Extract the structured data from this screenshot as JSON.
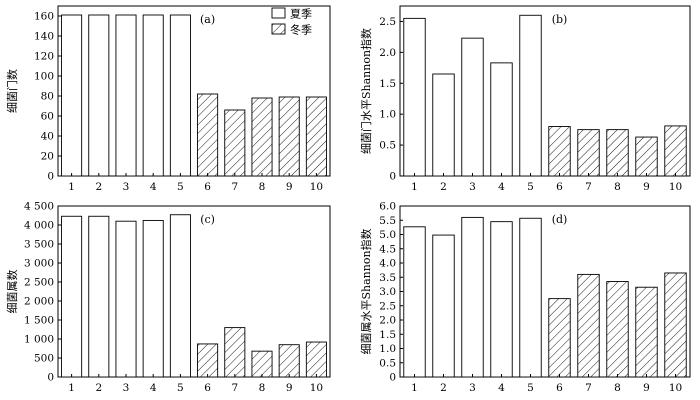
{
  "chart_data": [
    {
      "type": "bar",
      "panel_label": "(a)",
      "ylabel": "细菌门数",
      "categories": [
        "1",
        "2",
        "3",
        "4",
        "5",
        "6",
        "7",
        "8",
        "9",
        "10"
      ],
      "values": [
        161,
        161,
        161,
        161,
        161,
        82,
        66,
        78,
        79,
        79
      ],
      "season": [
        "summer",
        "summer",
        "summer",
        "summer",
        "summer",
        "winter",
        "winter",
        "winter",
        "winter",
        "winter"
      ],
      "ylim": [
        0,
        170
      ],
      "yticks": [
        0,
        20,
        40,
        60,
        80,
        100,
        120,
        140,
        160
      ],
      "ytick_labels": [
        "0",
        "20",
        "40",
        "60",
        "80",
        "100",
        "120",
        "140",
        "160"
      ],
      "legend": [
        {
          "label": "夏季",
          "style": "summer"
        },
        {
          "label": "冬季",
          "style": "winter"
        }
      ],
      "legend_position": "top-right"
    },
    {
      "type": "bar",
      "panel_label": "(b)",
      "ylabel": "细菌门水平Shannon指数",
      "categories": [
        "1",
        "2",
        "3",
        "4",
        "5",
        "6",
        "7",
        "8",
        "9",
        "10"
      ],
      "values": [
        2.55,
        1.65,
        2.23,
        1.83,
        2.6,
        0.8,
        0.75,
        0.75,
        0.63,
        0.81
      ],
      "season": [
        "summer",
        "summer",
        "summer",
        "summer",
        "summer",
        "winter",
        "winter",
        "winter",
        "winter",
        "winter"
      ],
      "ylim": [
        0,
        2.75
      ],
      "yticks": [
        0,
        0.5,
        1.0,
        1.5,
        2.0,
        2.5
      ],
      "ytick_labels": [
        "0",
        "0.5",
        "1.0",
        "1.5",
        "2.0",
        "2.5"
      ]
    },
    {
      "type": "bar",
      "panel_label": "(c)",
      "ylabel": "细菌属数",
      "categories": [
        "1",
        "2",
        "3",
        "4",
        "5",
        "6",
        "7",
        "8",
        "9",
        "10"
      ],
      "values": [
        4230,
        4230,
        4100,
        4120,
        4270,
        870,
        1300,
        680,
        850,
        920
      ],
      "season": [
        "summer",
        "summer",
        "summer",
        "summer",
        "summer",
        "winter",
        "winter",
        "winter",
        "winter",
        "winter"
      ],
      "ylim": [
        0,
        4500
      ],
      "yticks": [
        0,
        500,
        1000,
        1500,
        2000,
        2500,
        3000,
        3500,
        4000,
        4500
      ],
      "ytick_labels": [
        "0",
        "500",
        "1 000",
        "1 500",
        "2 000",
        "2 500",
        "3 000",
        "3 500",
        "4 000",
        "4 500"
      ]
    },
    {
      "type": "bar",
      "panel_label": "(d)",
      "ylabel": "细菌属水平Shannon指数",
      "categories": [
        "1",
        "2",
        "3",
        "4",
        "5",
        "6",
        "7",
        "8",
        "9",
        "10"
      ],
      "values": [
        5.27,
        4.98,
        5.6,
        5.45,
        5.57,
        2.75,
        3.6,
        3.35,
        3.15,
        3.65
      ],
      "season": [
        "summer",
        "summer",
        "summer",
        "summer",
        "summer",
        "winter",
        "winter",
        "winter",
        "winter",
        "winter"
      ],
      "ylim": [
        0,
        6.0
      ],
      "yticks": [
        0,
        0.5,
        1.0,
        1.5,
        2.0,
        2.5,
        3.0,
        3.5,
        4.0,
        4.5,
        5.0,
        5.5,
        6.0
      ],
      "ytick_labels": [
        "0",
        "0.5",
        "1.0",
        "1.5",
        "2.0",
        "2.5",
        "3.0",
        "3.5",
        "4.0",
        "4.5",
        "5.0",
        "5.5",
        "6.0"
      ]
    }
  ]
}
